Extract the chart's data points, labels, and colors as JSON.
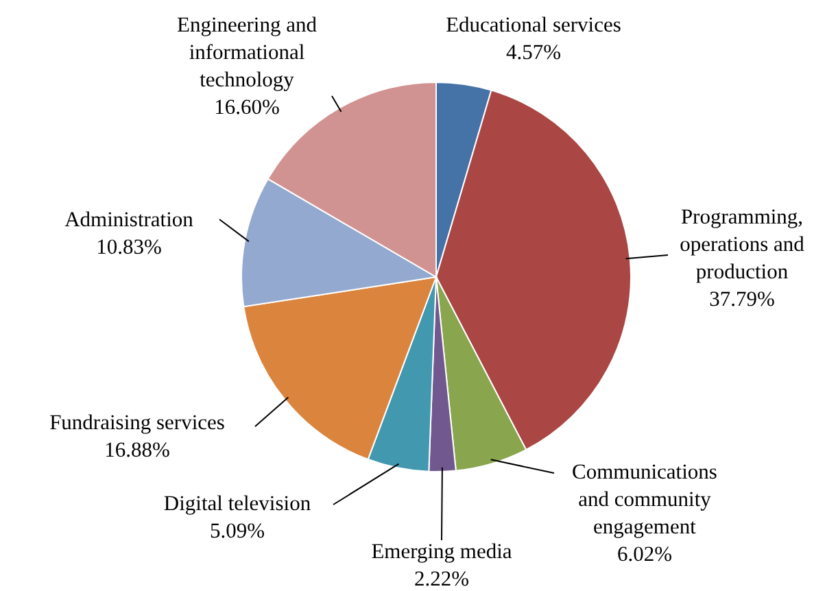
{
  "chart_data": {
    "type": "pie",
    "categories": [
      "Educational services",
      "Programming, operations and production",
      "Communications and community engagement",
      "Emerging media",
      "Digital television",
      "Fundraising services",
      "Administration",
      "Engineering and informational technology"
    ],
    "values": [
      4.57,
      37.79,
      6.02,
      2.22,
      5.09,
      16.88,
      10.83,
      16.6
    ],
    "value_labels": [
      "4.57%",
      "37.79%",
      "6.02%",
      "2.22%",
      "5.09%",
      "16.88%",
      "10.83%",
      "16.60%"
    ],
    "colors": [
      "#4572a7",
      "#aa4643",
      "#89a54e",
      "#71588f",
      "#4198af",
      "#db843d",
      "#93a9cf",
      "#d19392"
    ]
  }
}
